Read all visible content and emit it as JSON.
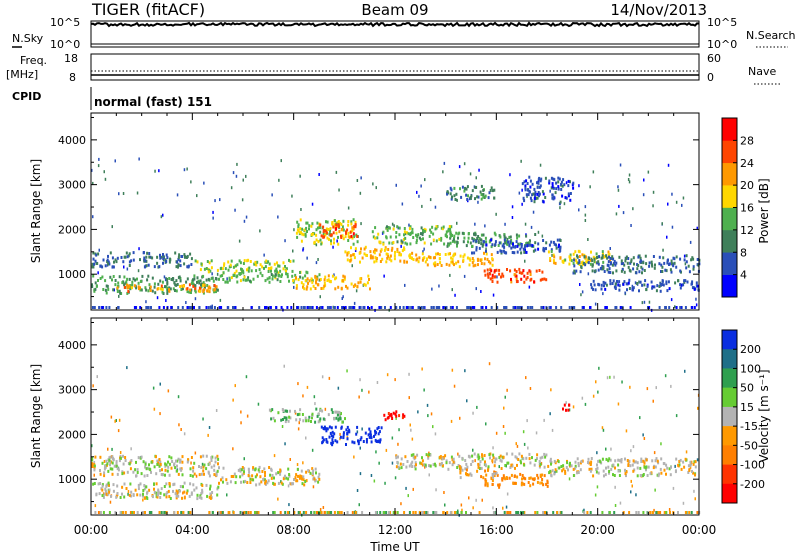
{
  "header": {
    "radar": "TIGER (fitACF)",
    "beam": "Beam 09",
    "date": "14/Nov/2013"
  },
  "nsky_panel": {
    "left_label": "N.Sky",
    "right_label": "N.Search",
    "left_ticks": [
      "10^5",
      "10^0"
    ],
    "right_ticks": [
      "10^5",
      "10^0"
    ]
  },
  "freq_panel": {
    "left_label_1": "Freq.",
    "left_label_2": "[MHz]",
    "right_label": "Nave",
    "left_ticks": [
      "18",
      "8"
    ],
    "right_ticks": [
      "60",
      "0"
    ]
  },
  "cpid_panel": {
    "label": "CPID",
    "value": "normal (fast) 151"
  },
  "x_axis": {
    "title": "Time UT",
    "ticks": [
      "00:00",
      "04:00",
      "08:00",
      "12:00",
      "16:00",
      "20:00",
      "00:00"
    ]
  },
  "colors": {
    "power_scale": [
      "#0000ff",
      "#2a4fb8",
      "#3f7f5a",
      "#4fb04f",
      "#ffd700",
      "#ff9900",
      "#ff4500",
      "#ff0000"
    ],
    "velocity_scale": [
      "#0a2ee0",
      "#1f6f88",
      "#2f9f4f",
      "#66cc33",
      "#b3b3b3",
      "#ff9900",
      "#ff7f00",
      "#ff3300",
      "#ff0000"
    ]
  },
  "chart_data": [
    {
      "type": "heatmap",
      "name": "power",
      "ylabel": "Slant Range [km]",
      "xlabel": "",
      "xlim": [
        0,
        24
      ],
      "ylim": [
        200,
        4600
      ],
      "yticks": [
        "1000",
        "2000",
        "3000",
        "4000"
      ],
      "colorbar_label": "Power [dB]",
      "colorbar_ticks": [
        "4",
        "8",
        "12",
        "16",
        "20",
        "24",
        "28"
      ],
      "colorbar_range": [
        0,
        32
      ],
      "features": [
        {
          "t0": 0.0,
          "t1": 4.0,
          "r0": 1180,
          "r1": 1520,
          "value": 8
        },
        {
          "t0": 0.0,
          "t1": 5.0,
          "r0": 600,
          "r1": 1000,
          "value": 12
        },
        {
          "t0": 1.0,
          "t1": 5.0,
          "r0": 640,
          "r1": 800,
          "value": 22
        },
        {
          "t0": 4.0,
          "t1": 8.0,
          "r0": 1080,
          "r1": 1350,
          "value": 16
        },
        {
          "t0": 5.0,
          "t1": 9.0,
          "r0": 850,
          "r1": 1100,
          "value": 14
        },
        {
          "t0": 8.0,
          "t1": 10.5,
          "r0": 1700,
          "r1": 2250,
          "value": 16
        },
        {
          "t0": 9.0,
          "t1": 10.5,
          "r0": 1850,
          "r1": 2150,
          "value": 26
        },
        {
          "t0": 8.0,
          "t1": 11.0,
          "r0": 700,
          "r1": 1000,
          "value": 20
        },
        {
          "t0": 10.0,
          "t1": 13.0,
          "r0": 1300,
          "r1": 1650,
          "value": 20
        },
        {
          "t0": 11.0,
          "t1": 14.5,
          "r0": 1700,
          "r1": 2100,
          "value": 14
        },
        {
          "t0": 13.0,
          "t1": 16.0,
          "r0": 1200,
          "r1": 1500,
          "value": 20
        },
        {
          "t0": 14.0,
          "t1": 17.5,
          "r0": 1650,
          "r1": 1950,
          "value": 12
        },
        {
          "t0": 15.5,
          "t1": 18.0,
          "r0": 850,
          "r1": 1150,
          "value": 26
        },
        {
          "t0": 15.0,
          "t1": 18.5,
          "r0": 1500,
          "r1": 1800,
          "value": 6
        },
        {
          "t0": 18.0,
          "t1": 20.5,
          "r0": 1250,
          "r1": 1550,
          "value": 18
        },
        {
          "t0": 19.0,
          "t1": 24.0,
          "r0": 1050,
          "r1": 1450,
          "value": 8
        },
        {
          "t0": 19.5,
          "t1": 24.0,
          "r0": 650,
          "r1": 900,
          "value": 6
        },
        {
          "t0": 14.0,
          "t1": 16.0,
          "r0": 2700,
          "r1": 3000,
          "value": 10
        },
        {
          "t0": 17.0,
          "t1": 19.0,
          "r0": 2600,
          "r1": 3200,
          "value": 6
        }
      ]
    },
    {
      "type": "heatmap",
      "name": "velocity",
      "ylabel": "Slant Range [km]",
      "xlabel": "Time UT",
      "xlim": [
        0,
        24
      ],
      "ylim": [
        200,
        4600
      ],
      "yticks": [
        "1000",
        "2000",
        "3000",
        "4000"
      ],
      "colorbar_label": "Velocity [m s⁻¹]",
      "colorbar_ticks": [
        "200",
        "100",
        "50",
        "15",
        "-15",
        "-50",
        "-100",
        "-200"
      ],
      "colorbar_range": [
        -250,
        250
      ],
      "features": [
        {
          "t0": 0.0,
          "t1": 5.0,
          "r0": 1100,
          "r1": 1550,
          "value": 0
        },
        {
          "t0": 0.0,
          "t1": 5.0,
          "r0": 600,
          "r1": 950,
          "value": 0
        },
        {
          "t0": 5.0,
          "t1": 9.0,
          "r0": 900,
          "r1": 1300,
          "value": 0
        },
        {
          "t0": 7.0,
          "t1": 10.0,
          "r0": 2300,
          "r1": 2600,
          "value": 20
        },
        {
          "t0": 9.0,
          "t1": 11.5,
          "r0": 1800,
          "r1": 2200,
          "value": 220
        },
        {
          "t0": 12.0,
          "t1": 18.0,
          "r0": 1250,
          "r1": 1600,
          "value": 0
        },
        {
          "t0": 15.5,
          "t1": 18.0,
          "r0": 850,
          "r1": 1150,
          "value": -60
        },
        {
          "t0": 14.5,
          "t1": 16.0,
          "r0": 1050,
          "r1": 1250,
          "value": -40
        },
        {
          "t0": 18.0,
          "t1": 24.0,
          "r0": 1100,
          "r1": 1500,
          "value": 0
        },
        {
          "t0": 18.5,
          "t1": 19.0,
          "r0": 2550,
          "r1": 2700,
          "value": -220
        },
        {
          "t0": 11.5,
          "t1": 12.5,
          "r0": 2350,
          "r1": 2550,
          "value": -200
        }
      ]
    }
  ]
}
